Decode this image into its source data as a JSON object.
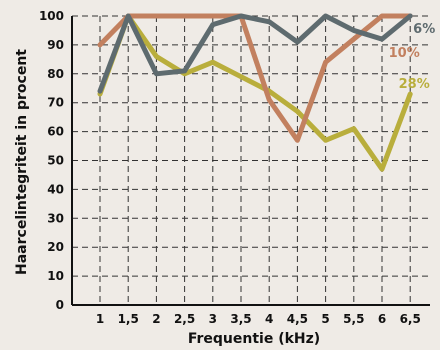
{
  "chart_data": {
    "type": "line",
    "title": "",
    "xlabel": "Frequentie (kHz)",
    "ylabel": "Haarcelintegriteit in procent",
    "categories": [
      "1",
      "1,5",
      "2",
      "2,5",
      "3",
      "3,5",
      "4",
      "4,5",
      "5",
      "5,5",
      "6",
      "6,5"
    ],
    "x": [
      1,
      1.5,
      2,
      2.5,
      3,
      3.5,
      4,
      4.5,
      5,
      5.5,
      6,
      6.5
    ],
    "ylim": [
      0,
      100
    ],
    "yticks": [
      0,
      10,
      20,
      30,
      40,
      50,
      60,
      70,
      80,
      90,
      100
    ],
    "grid": true,
    "legend": "inline labels at right end of series",
    "series": [
      {
        "name": "6%",
        "color": "#5e6b6f",
        "values": [
          74,
          100,
          80,
          81,
          97,
          100,
          98,
          91,
          100,
          95,
          92,
          100
        ]
      },
      {
        "name": "10%",
        "color": "#c2805f",
        "values": [
          90,
          100,
          100,
          100,
          100,
          100,
          71,
          57,
          84,
          92,
          100,
          100
        ]
      },
      {
        "name": "28%",
        "color": "#b9ae3c",
        "values": [
          73,
          100,
          86,
          80,
          84,
          79,
          74,
          67,
          57,
          61,
          47,
          73
        ]
      }
    ]
  }
}
